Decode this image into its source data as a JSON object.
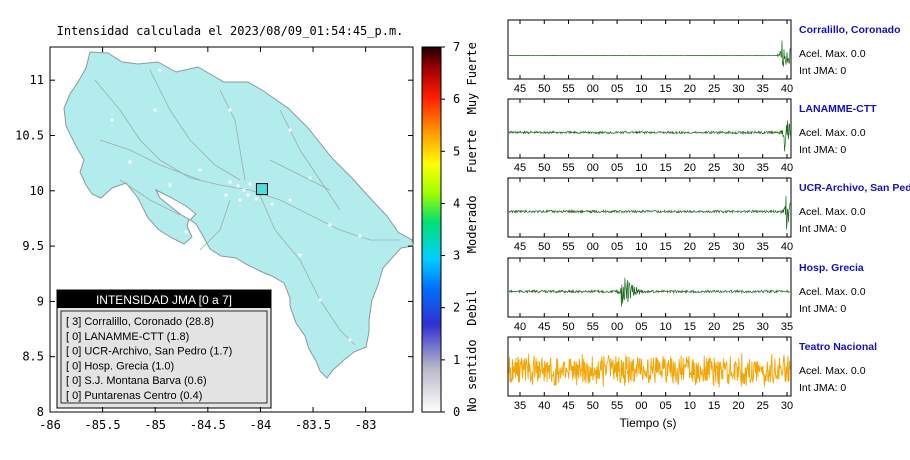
{
  "map": {
    "title": "Intensidad calculada el 2023/08/09_01:54:45_p.m.",
    "x_ticks": [
      "-86",
      "-85.5",
      "-85",
      "-84.5",
      "-84",
      "-83.5",
      "-83"
    ],
    "y_ticks": [
      "11",
      "10.5",
      "10",
      "9.5",
      "9",
      "8.5",
      "8"
    ],
    "land_color": "#b3ecec",
    "legend": {
      "title": "INTENSIDAD JMA [0 a 7]",
      "entries": [
        "[ 3]  Corralillo, Coronado (28.8)",
        "[ 0]  LANAMME-CTT (1.8)",
        "[ 0]  UCR-Archivo, San Pedro (1.7)",
        "[ 0]  Hosp. Grecia (1.0)",
        "[ 0]  S.J. Montana Barva (0.6)",
        "[ 0]  Puntarenas Centro (0.4)"
      ]
    }
  },
  "colorbar": {
    "ticks": [
      "0",
      "1",
      "2",
      "3",
      "4",
      "5",
      "6",
      "7"
    ],
    "labels": [
      "No sentido",
      "Debil",
      "Moderado",
      "Fuerte",
      "Muy Fuerte"
    ]
  },
  "stations": [
    {
      "name": "Corralillo, Coronado",
      "accel": "Acel. Max. 0.0",
      "jma": "Int JMA: 0",
      "ticks": [
        "45",
        "50",
        "55",
        "00",
        "05",
        "10",
        "15",
        "20",
        "25",
        "30",
        "35",
        "40"
      ]
    },
    {
      "name": "LANAMME-CTT",
      "accel": "Acel. Max. 0.0",
      "jma": "Int JMA: 0",
      "ticks": [
        "45",
        "50",
        "55",
        "00",
        "05",
        "10",
        "15",
        "20",
        "25",
        "30",
        "35",
        "40"
      ]
    },
    {
      "name": "UCR-Archivo, San Pedro",
      "accel": "Acel. Max. 0.0",
      "jma": "Int JMA: 0",
      "ticks": [
        "45",
        "50",
        "55",
        "00",
        "05",
        "10",
        "15",
        "20",
        "25",
        "30",
        "35",
        "40"
      ]
    },
    {
      "name": "Hosp. Grecia",
      "accel": "Acel. Max. 0.0",
      "jma": "Int JMA: 0",
      "ticks": [
        "40",
        "45",
        "50",
        "55",
        "00",
        "05",
        "10",
        "15",
        "20",
        "25",
        "30",
        "35"
      ]
    },
    {
      "name": "Teatro Nacional",
      "accel": "Acel. Max. 0.0",
      "jma": "Int JMA: 0",
      "ticks": [
        "35",
        "40",
        "45",
        "50",
        "55",
        "00",
        "05",
        "10",
        "15",
        "20",
        "25",
        "30"
      ]
    }
  ],
  "xlabel": "Tiempo (s)",
  "colors": {
    "trace": "#1a6e1a",
    "trace_orange": "#f5a500",
    "station_name": "#1010cc"
  },
  "chart_data": {
    "type": "scatter",
    "title": "Intensidad calculada el 2023/08/09_01:54:45_p.m.",
    "xlim": [
      -86,
      -82.55
    ],
    "ylim": [
      8,
      11.3
    ],
    "highlight_point": {
      "x": -84.0,
      "y": 10.02
    },
    "intensity_scale": [
      0,
      7
    ]
  }
}
